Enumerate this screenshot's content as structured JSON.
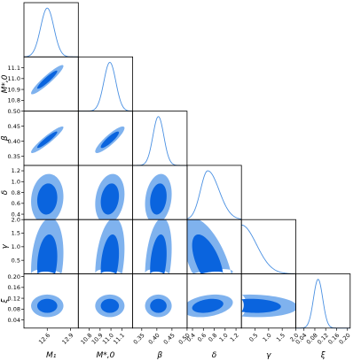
{
  "chart_data": {
    "type": "corner",
    "parameters": [
      {
        "key": "M1",
        "label": "M₁",
        "range": [
          12.3,
          13.0
        ],
        "ticks": [
          12.6,
          12.9
        ],
        "tick_labels": [
          "12.6",
          "12.9"
        ],
        "mean": 12.6,
        "sd": 0.085,
        "skew": 0
      },
      {
        "key": "Ms0",
        "label": "M*,0",
        "range": [
          10.7,
          11.2
        ],
        "ticks": [
          10.8,
          10.9,
          11.0,
          11.1
        ],
        "tick_labels": [
          "10.8",
          "10.9",
          "11.0",
          "11.1"
        ],
        "mean": 10.99,
        "sd": 0.055,
        "skew": 0
      },
      {
        "key": "beta",
        "label": "β",
        "range": [
          0.32,
          0.5
        ],
        "ticks": [
          0.35,
          0.4,
          0.45,
          0.5
        ],
        "tick_labels": [
          "0.35",
          "0.40",
          "0.45",
          "0.50"
        ],
        "mean": 0.405,
        "sd": 0.018,
        "skew": 0
      },
      {
        "key": "delta",
        "label": "δ",
        "range": [
          0.3,
          1.3
        ],
        "ticks": [
          0.4,
          0.6,
          0.8,
          1.0,
          1.2
        ],
        "tick_labels": [
          "0.4",
          "0.6",
          "0.8",
          "1.0",
          "1.2"
        ],
        "mean": 0.68,
        "sd": 0.17,
        "skew": 0.22
      },
      {
        "key": "gamma",
        "label": "γ",
        "range": [
          0.0,
          2.0
        ],
        "ticks": [
          0.5,
          1.0,
          1.5,
          2.0
        ],
        "tick_labels": [
          "0.5",
          "1.0",
          "1.5",
          "2.0"
        ],
        "mean": 0.05,
        "sd": 0.55,
        "skew": 0,
        "half": true
      },
      {
        "key": "xi",
        "label": "ξ",
        "range": [
          0.01,
          0.21
        ],
        "ticks": [
          0.04,
          0.08,
          0.12,
          0.16,
          0.2
        ],
        "tick_labels": [
          "0.04",
          "0.08",
          "0.12",
          "0.16",
          "0.20"
        ],
        "mean": 0.092,
        "sd": 0.017,
        "skew": 0
      }
    ],
    "correlations": {
      "Ms0|M1": 0.93,
      "beta|M1": 0.93,
      "beta|Ms0": 0.88,
      "delta|M1": 0.1,
      "delta|Ms0": 0.2,
      "delta|beta": 0.2,
      "gamma|M1": 0.2,
      "gamma|Ms0": 0.3,
      "gamma|beta": 0.3,
      "gamma|delta": -0.6,
      "xi|M1": 0,
      "xi|Ms0": 0,
      "xi|beta": 0,
      "xi|delta": 0.3,
      "xi|gamma": -0.1
    },
    "contour_levels": [
      "1σ",
      "2σ"
    ],
    "colors": {
      "inner": "#0a64de",
      "outer": "#7fb2ee",
      "line": "#4a90e2",
      "frame": "#000000"
    }
  }
}
